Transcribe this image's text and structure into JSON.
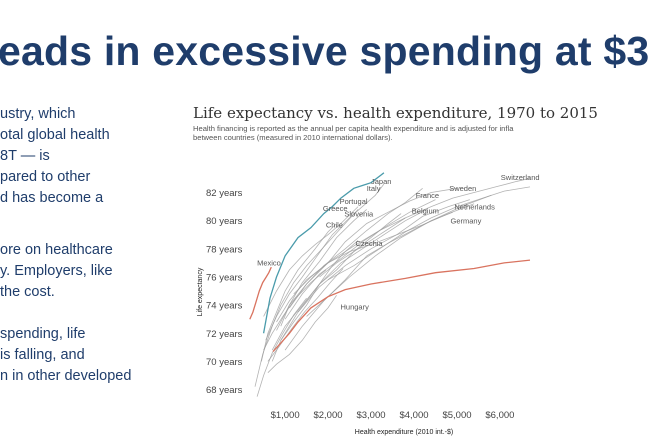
{
  "slide": {
    "headline": "eads in excessive spending at $3",
    "bullets": [
      [
        "ustry, which",
        "otal global health",
        "8T — is",
        "pared to other",
        "d has become a"
      ],
      [
        "ore on healthcare",
        "y. Employers, like",
        " the cost."
      ],
      [
        "spending, life",
        "is falling, and",
        "n in other developed"
      ]
    ]
  },
  "chart_data": {
    "type": "line",
    "title": "Life expectancy vs. health expenditure, 1970 to 2015",
    "subtitle": [
      "Health financing is reported as the annual per capita health expenditure and is adjusted for infla",
      "between countries (measured in 2010 international dollars)."
    ],
    "xlabel": "Health expenditure (2010 int.-$)",
    "ylabel": "Life expectancy",
    "xlim": [
      300,
      6700
    ],
    "ylim": [
      67.4,
      83.6
    ],
    "xticks": [
      1000,
      2000,
      3000,
      4000,
      5000,
      6000
    ],
    "xtick_labels": [
      "$1,000",
      "$2,000",
      "$3,000",
      "$4,000",
      "$5,000",
      "$6,000"
    ],
    "yticks": [
      68,
      70,
      72,
      74,
      76,
      78,
      80,
      82
    ],
    "ytick_labels": [
      "68 years",
      "70 years",
      "72 years",
      "74 years",
      "76 years",
      "78 years",
      "80 years",
      "82 years"
    ],
    "grid": false,
    "colors": {
      "highlight_blue": "#4a9bab",
      "usa_red": "#d9735f",
      "other_gray": "#9a9a9a",
      "label_blue": "#2f6f8f",
      "label_red": "#c0392b"
    },
    "series": [
      {
        "name": "Japan",
        "color": "#4a9bab",
        "label_at": [
          3000,
          82.6
        ],
        "label_color": "#2f6f8f",
        "x": [
          500,
          650,
          800,
          1000,
          1300,
          1600,
          1900,
          2100,
          2300,
          2600,
          2800,
          3000,
          3300
        ],
        "y": [
          72.0,
          74.5,
          76.0,
          77.5,
          78.8,
          79.5,
          80.5,
          81.0,
          81.6,
          82.3,
          82.5,
          82.7,
          83.4
        ]
      },
      {
        "name": "Mexico",
        "color": "#d9735f",
        "label_at": [
          350,
          76.8
        ],
        "label_color": "#c0392b",
        "x": [
          180,
          250,
          320,
          400,
          480,
          560,
          620,
          680
        ],
        "y": [
          73.0,
          73.5,
          74.2,
          75.0,
          75.6,
          76.0,
          76.3,
          76.7
        ]
      },
      {
        "name": "",
        "color": "#d9735f",
        "x": [
          720,
          900,
          1100,
          1300,
          1600,
          2000,
          2400,
          3000,
          3800,
          4500,
          5400,
          6100,
          6700
        ],
        "y": [
          70.7,
          71.3,
          72.0,
          72.8,
          73.8,
          74.6,
          75.1,
          75.5,
          75.9,
          76.3,
          76.6,
          77.0,
          77.2
        ]
      },
      {
        "name": "Italy",
        "color": "#9a9a9a",
        "label_at": [
          2900,
          82.1
        ],
        "x": [
          550,
          800,
          1100,
          1400,
          1700,
          2100,
          2500,
          2800,
          3100,
          3300
        ],
        "y": [
          71.5,
          73.2,
          74.8,
          76.0,
          77.3,
          79.0,
          80.2,
          81.0,
          81.8,
          82.6
        ]
      },
      {
        "name": "Portugal",
        "color": "#9a9a9a",
        "label_at": [
          2270,
          81.2
        ],
        "x": [
          300,
          480,
          700,
          900,
          1200,
          1500,
          1800,
          2100,
          2400,
          2700
        ],
        "y": [
          68.2,
          70.5,
          72.5,
          74.0,
          75.6,
          76.8,
          77.8,
          78.8,
          79.8,
          80.8
        ]
      },
      {
        "name": "Greece",
        "color": "#9a9a9a",
        "label_at": [
          1880,
          80.7
        ],
        "x": [
          500,
          800,
          1100,
          1400,
          1700,
          2000,
          2300,
          2500,
          2700
        ],
        "y": [
          73.2,
          75.0,
          76.5,
          77.5,
          78.3,
          79.0,
          79.8,
          80.4,
          81.0
        ]
      },
      {
        "name": "Slovenia",
        "color": "#9a9a9a",
        "label_at": [
          2380,
          80.3
        ],
        "x": [
          900,
          1100,
          1400,
          1800,
          2200,
          2600,
          2900
        ],
        "y": [
          72.5,
          74.0,
          75.6,
          77.1,
          78.8,
          80.0,
          80.8
        ]
      },
      {
        "name": "Chile",
        "color": "#9a9a9a",
        "label_at": [
          1950,
          79.5
        ],
        "x": [
          450,
          600,
          800,
          1000,
          1300,
          1700,
          2000,
          2200
        ],
        "y": [
          70.0,
          72.0,
          73.5,
          75.0,
          76.5,
          78.0,
          79.2,
          79.8
        ]
      },
      {
        "name": "Czechia",
        "color": "#9a9a9a",
        "label_at": [
          2640,
          78.2
        ],
        "x": [
          700,
          900,
          1200,
          1500,
          1800,
          2100,
          2400,
          2700
        ],
        "y": [
          70.0,
          71.5,
          72.8,
          74.0,
          75.5,
          76.8,
          77.8,
          78.6
        ]
      },
      {
        "name": "Hungary",
        "color": "#9a9a9a",
        "label_at": [
          2290,
          73.7
        ],
        "x": [
          600,
          800,
          1100,
          1400,
          1700,
          2000,
          2200
        ],
        "y": [
          69.2,
          69.8,
          70.5,
          71.5,
          72.8,
          73.8,
          74.7
        ]
      },
      {
        "name": "France",
        "color": "#9a9a9a",
        "label_at": [
          4040,
          81.6
        ],
        "x": [
          800,
          1100,
          1500,
          1900,
          2400,
          2900,
          3400,
          3800,
          4200
        ],
        "y": [
          72.2,
          74.0,
          75.5,
          76.8,
          78.0,
          79.3,
          80.5,
          81.3,
          82.3
        ]
      },
      {
        "name": "Sweden",
        "color": "#9a9a9a",
        "label_at": [
          4820,
          82.1
        ],
        "x": [
          1200,
          1600,
          2000,
          2400,
          2900,
          3400,
          3900,
          4400,
          5000
        ],
        "y": [
          74.8,
          76.0,
          77.0,
          78.5,
          79.8,
          80.6,
          81.4,
          82.0,
          82.3
        ]
      },
      {
        "name": "Netherlands",
        "color": "#9a9a9a",
        "label_at": [
          4940,
          80.8
        ],
        "x": [
          1100,
          1500,
          2000,
          2500,
          3000,
          3600,
          4200,
          4800,
          5300
        ],
        "y": [
          73.8,
          75.5,
          77.0,
          77.8,
          78.3,
          79.0,
          80.3,
          81.0,
          81.5
        ]
      },
      {
        "name": "Belgium",
        "color": "#9a9a9a",
        "label_at": [
          3950,
          80.5
        ],
        "x": [
          900,
          1300,
          1800,
          2300,
          2800,
          3300,
          3800,
          4300
        ],
        "y": [
          71.5,
          73.5,
          75.5,
          77.0,
          78.0,
          79.0,
          80.0,
          80.8
        ]
      },
      {
        "name": "Germany",
        "color": "#9a9a9a",
        "label_at": [
          4850,
          79.8
        ],
        "x": [
          1000,
          1400,
          1900,
          2400,
          2900,
          3400,
          3900,
          4400,
          4900
        ],
        "y": [
          70.8,
          72.5,
          74.3,
          75.8,
          77.5,
          78.4,
          79.2,
          80.0,
          80.6
        ]
      },
      {
        "name": "Switzerland",
        "color": "#9a9a9a",
        "label_at": [
          6020,
          82.9
        ],
        "x": [
          1800,
          2200,
          2700,
          3200,
          3800,
          4400,
          4900,
          5400,
          5900,
          6400,
          6700
        ],
        "y": [
          76.0,
          77.0,
          78.0,
          79.0,
          80.2,
          81.0,
          81.6,
          82.0,
          82.4,
          82.8,
          83.0
        ]
      },
      {
        "name": "",
        "color": "#9a9a9a",
        "x": [
          2000,
          2600,
          3200,
          3800,
          4400,
          5000,
          5600,
          6100,
          6700
        ],
        "y": [
          75.8,
          76.8,
          78.0,
          79.2,
          80.2,
          81.0,
          81.6,
          82.1,
          82.4
        ]
      },
      {
        "name": "",
        "color": "#9a9a9a",
        "x": [
          1300,
          1800,
          2400,
          3000,
          3600,
          4200,
          4800,
          5400
        ],
        "y": [
          73.5,
          75.3,
          76.8,
          78.0,
          79.0,
          79.7,
          80.5,
          81.2
        ]
      },
      {
        "name": "",
        "color": "#9a9a9a",
        "x": [
          700,
          1000,
          1400,
          1800,
          2200,
          2600,
          3000,
          3400,
          3700
        ],
        "y": [
          70.8,
          72.5,
          74.0,
          75.5,
          76.5,
          77.8,
          78.8,
          79.8,
          80.5
        ]
      },
      {
        "name": "",
        "color": "#9a9a9a",
        "x": [
          600,
          850,
          1150,
          1450,
          1750,
          2050,
          2350
        ],
        "y": [
          70.0,
          71.0,
          72.3,
          73.5,
          74.5,
          75.6,
          76.6
        ]
      },
      {
        "name": "",
        "color": "#9a9a9a",
        "x": [
          500,
          700,
          950,
          1250,
          1600,
          1950
        ],
        "y": [
          70.8,
          72.0,
          73.2,
          74.5,
          75.6,
          76.5
        ]
      },
      {
        "name": "",
        "color": "#9a9a9a",
        "x": [
          800,
          1100,
          1500,
          2000,
          2600,
          3200,
          3800
        ],
        "y": [
          72.8,
          74.3,
          75.8,
          77.0,
          78.2,
          79.3,
          80.2
        ]
      },
      {
        "name": "",
        "color": "#9a9a9a",
        "x": [
          1000,
          1400,
          1800,
          2300,
          2800,
          3300,
          3900,
          4500
        ],
        "y": [
          73.0,
          74.8,
          76.2,
          77.3,
          78.5,
          79.5,
          80.6,
          81.5
        ]
      },
      {
        "name": "",
        "color": "#9a9a9a",
        "x": [
          350,
          500,
          700,
          950,
          1200,
          1500
        ],
        "y": [
          67.5,
          69.0,
          70.6,
          72.0,
          73.3,
          74.5
        ]
      },
      {
        "name": "",
        "color": "#9a9a9a",
        "x": [
          1500,
          2000,
          2500,
          3100,
          3700,
          4400,
          5100,
          5800
        ],
        "y": [
          73.2,
          74.6,
          76.0,
          77.5,
          78.8,
          80.0,
          81.0,
          81.8
        ]
      }
    ]
  }
}
